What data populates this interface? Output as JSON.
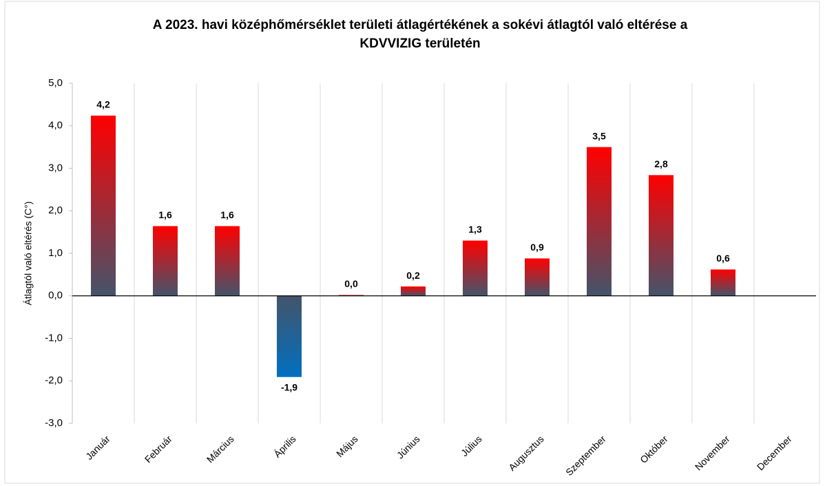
{
  "chart_data": {
    "type": "bar",
    "title": [
      "A 2023. havi középhőmérséklet területi átlagértékének  a sokévi átlagtól való eltérése a",
      "KDVVIZIG területén"
    ],
    "y_axis_label": "Átlagtól való eltérés (C°)",
    "categories": [
      "Január",
      "Február",
      "Március",
      "Április",
      "Május",
      "Június",
      "Július",
      "Augusztus",
      "Szeptember",
      "Október",
      "November",
      "December"
    ],
    "values": [
      4.24,
      1.64,
      1.64,
      -1.91,
      0.02,
      0.22,
      1.3,
      0.88,
      3.5,
      2.84,
      0.62,
      null
    ],
    "value_labels": [
      "4,2",
      "1,6",
      "1,6",
      "-1,9",
      "0,0",
      "0,2",
      "1,3",
      "0,9",
      "3,5",
      "2,8",
      "0,6",
      null
    ],
    "positive_color": "#ff0000",
    "negative_color": "#0070c0",
    "base_color": "#44546a",
    "ylim": [
      -3,
      5
    ],
    "yticks": [
      {
        "value": -3,
        "label": "-3,0"
      },
      {
        "value": -2,
        "label": "-2,0"
      },
      {
        "value": -1,
        "label": "-1,0"
      },
      {
        "value": 0,
        "label": "0,0"
      },
      {
        "value": 1,
        "label": "1,0"
      },
      {
        "value": 2,
        "label": "2,0"
      },
      {
        "value": 3,
        "label": "3,0"
      },
      {
        "value": 4,
        "label": "4,0"
      },
      {
        "value": 5,
        "label": "5,0"
      }
    ],
    "grid": true
  }
}
